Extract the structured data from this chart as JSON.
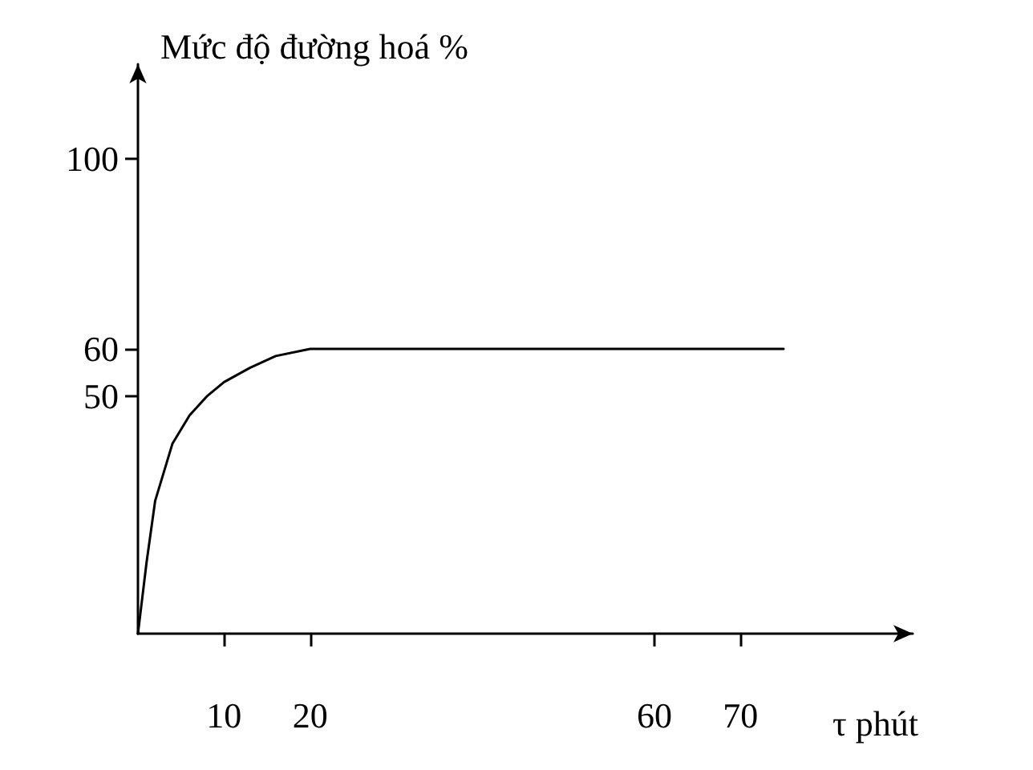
{
  "chart_data": {
    "type": "line",
    "ylabel": "Mức độ đường hoá %",
    "xlabel": "τ phút",
    "x": [
      0,
      1,
      2,
      4,
      6,
      8,
      10,
      13,
      16,
      20,
      75
    ],
    "series": [
      {
        "color": "#000000",
        "values": [
          0,
          15,
          28,
          40,
          46,
          50,
          53,
          56,
          58.5,
          60,
          60
        ]
      }
    ],
    "xlim": [
      0,
      90
    ],
    "xticks": [
      10,
      20,
      60,
      70
    ],
    "ylim": [
      0,
      120
    ],
    "yticks": [
      50,
      60,
      100
    ],
    "grid": false,
    "marker": "none",
    "line_style": "solid"
  }
}
